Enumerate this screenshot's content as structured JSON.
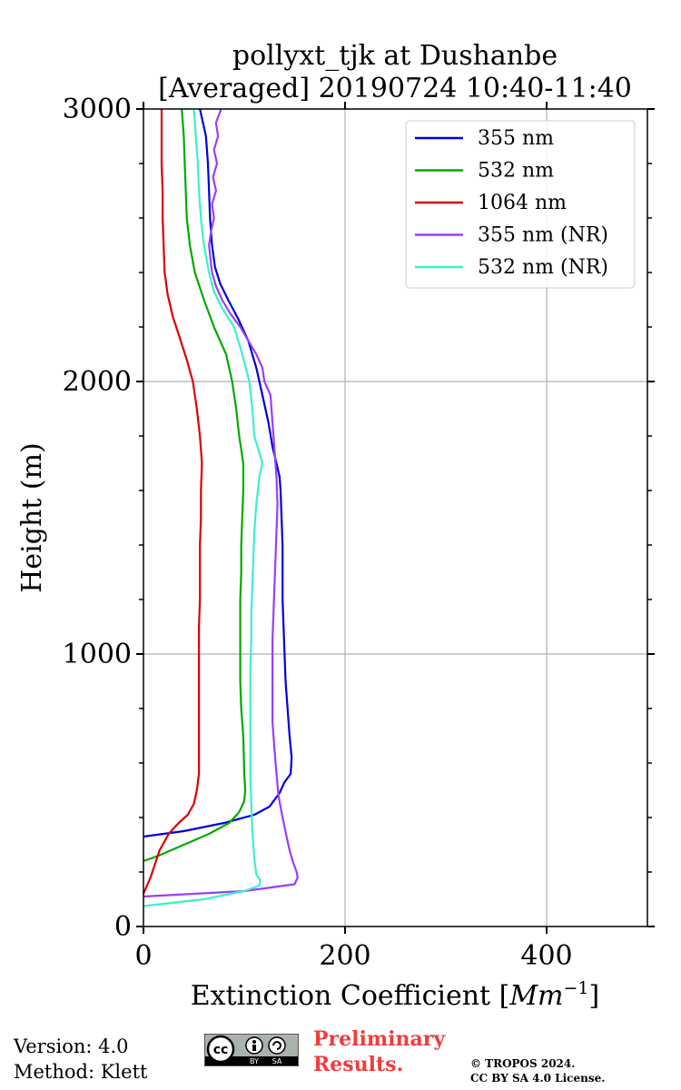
{
  "chart_data": {
    "type": "line",
    "title_line1": "pollyxt_tjk at Dushanbe",
    "title_line2": "[Averaged] 20190724 10:40-11:40",
    "xlabel": "Extinction Coefficient [",
    "xlabel_unit": "Mm",
    "xlabel_exp": "−1",
    "xlabel_close": "]",
    "ylabel": "Height (m)",
    "xlim": [
      0,
      500
    ],
    "ylim": [
      0,
      3000
    ],
    "xticks": [
      0,
      200,
      400
    ],
    "yticks": [
      0,
      1000,
      2000,
      3000
    ],
    "grid": true,
    "legend_position": "top-right",
    "series": [
      {
        "name": "355 nm",
        "color": "#0000dd",
        "points": [
          [
            0,
            330
          ],
          [
            40,
            350
          ],
          [
            80,
            380
          ],
          [
            110,
            410
          ],
          [
            125,
            440
          ],
          [
            135,
            490
          ],
          [
            140,
            530
          ],
          [
            146,
            560
          ],
          [
            147,
            620
          ],
          [
            145,
            700
          ],
          [
            143,
            800
          ],
          [
            141,
            900
          ],
          [
            140,
            1000
          ],
          [
            139,
            1100
          ],
          [
            138,
            1200
          ],
          [
            138,
            1300
          ],
          [
            138,
            1400
          ],
          [
            137,
            1500
          ],
          [
            136,
            1600
          ],
          [
            135,
            1650
          ],
          [
            132,
            1700
          ],
          [
            128,
            1760
          ],
          [
            124,
            1850
          ],
          [
            118,
            1950
          ],
          [
            112,
            2050
          ],
          [
            104,
            2150
          ],
          [
            94,
            2230
          ],
          [
            84,
            2300
          ],
          [
            76,
            2360
          ],
          [
            71,
            2420
          ],
          [
            68,
            2500
          ],
          [
            66,
            2600
          ],
          [
            65,
            2700
          ],
          [
            64,
            2800
          ],
          [
            62,
            2900
          ],
          [
            56,
            3000
          ]
        ]
      },
      {
        "name": "532 nm",
        "color": "#00aa00",
        "points": [
          [
            0,
            240
          ],
          [
            15,
            260
          ],
          [
            40,
            300
          ],
          [
            65,
            340
          ],
          [
            85,
            380
          ],
          [
            95,
            420
          ],
          [
            100,
            460
          ],
          [
            101,
            500
          ],
          [
            100,
            560
          ],
          [
            99,
            700
          ],
          [
            97,
            800
          ],
          [
            96,
            900
          ],
          [
            96,
            1000
          ],
          [
            96,
            1100
          ],
          [
            96,
            1200
          ],
          [
            97,
            1300
          ],
          [
            97,
            1400
          ],
          [
            98,
            1500
          ],
          [
            99,
            1600
          ],
          [
            99,
            1700
          ],
          [
            97,
            1750
          ],
          [
            95,
            1800
          ],
          [
            92,
            1900
          ],
          [
            88,
            2000
          ],
          [
            82,
            2100
          ],
          [
            70,
            2200
          ],
          [
            60,
            2300
          ],
          [
            51,
            2400
          ],
          [
            46,
            2500
          ],
          [
            43,
            2600
          ],
          [
            42,
            2700
          ],
          [
            41,
            2800
          ],
          [
            40,
            2900
          ],
          [
            38,
            3000
          ]
        ]
      },
      {
        "name": "1064 nm",
        "color": "#dd0000",
        "points": [
          [
            0,
            120
          ],
          [
            7,
            180
          ],
          [
            16,
            280
          ],
          [
            25,
            340
          ],
          [
            35,
            380
          ],
          [
            44,
            410
          ],
          [
            50,
            450
          ],
          [
            53,
            500
          ],
          [
            55,
            560
          ],
          [
            55,
            700
          ],
          [
            55,
            800
          ],
          [
            55,
            900
          ],
          [
            55,
            1000
          ],
          [
            55,
            1100
          ],
          [
            56,
            1200
          ],
          [
            56,
            1300
          ],
          [
            56,
            1400
          ],
          [
            57,
            1500
          ],
          [
            57,
            1600
          ],
          [
            58,
            1700
          ],
          [
            56,
            1800
          ],
          [
            53,
            1900
          ],
          [
            49,
            2000
          ],
          [
            43,
            2080
          ],
          [
            36,
            2160
          ],
          [
            29,
            2240
          ],
          [
            24,
            2320
          ],
          [
            21,
            2400
          ],
          [
            20,
            2500
          ],
          [
            19,
            2600
          ],
          [
            19,
            2700
          ],
          [
            18,
            2800
          ],
          [
            18,
            2900
          ],
          [
            18,
            3000
          ]
        ]
      },
      {
        "name": "355 nm (NR)",
        "color": "#9a3ef8",
        "points": [
          [
            0,
            110
          ],
          [
            100,
            130
          ],
          [
            150,
            155
          ],
          [
            153,
            180
          ],
          [
            152,
            200
          ],
          [
            148,
            240
          ],
          [
            145,
            280
          ],
          [
            142,
            330
          ],
          [
            138,
            400
          ],
          [
            134,
            480
          ],
          [
            132,
            560
          ],
          [
            130,
            650
          ],
          [
            128,
            750
          ],
          [
            128,
            850
          ],
          [
            128,
            950
          ],
          [
            128,
            1050
          ],
          [
            129,
            1150
          ],
          [
            130,
            1250
          ],
          [
            131,
            1350
          ],
          [
            132,
            1450
          ],
          [
            133,
            1550
          ],
          [
            132,
            1650
          ],
          [
            130,
            1750
          ],
          [
            128,
            1850
          ],
          [
            126,
            1950
          ],
          [
            120,
            2000
          ],
          [
            118,
            2050
          ],
          [
            112,
            2100
          ],
          [
            104,
            2150
          ],
          [
            96,
            2200
          ],
          [
            86,
            2250
          ],
          [
            78,
            2300
          ],
          [
            72,
            2350
          ],
          [
            68,
            2400
          ],
          [
            65,
            2500
          ],
          [
            67,
            2550
          ],
          [
            70,
            2600
          ],
          [
            68,
            2650
          ],
          [
            72,
            2700
          ],
          [
            69,
            2750
          ],
          [
            73,
            2800
          ],
          [
            70,
            2850
          ],
          [
            74,
            2900
          ],
          [
            72,
            2950
          ],
          [
            77,
            3000
          ]
        ]
      },
      {
        "name": "532 nm (NR)",
        "color": "#3cf0cc",
        "points": [
          [
            0,
            75
          ],
          [
            60,
            100
          ],
          [
            100,
            130
          ],
          [
            115,
            150
          ],
          [
            116,
            170
          ],
          [
            112,
            190
          ],
          [
            110,
            250
          ],
          [
            108,
            350
          ],
          [
            107,
            450
          ],
          [
            106,
            550
          ],
          [
            106,
            650
          ],
          [
            106,
            750
          ],
          [
            106,
            850
          ],
          [
            106,
            950
          ],
          [
            107,
            1050
          ],
          [
            107,
            1150
          ],
          [
            108,
            1250
          ],
          [
            109,
            1350
          ],
          [
            110,
            1450
          ],
          [
            112,
            1550
          ],
          [
            115,
            1650
          ],
          [
            118,
            1700
          ],
          [
            114,
            1750
          ],
          [
            110,
            1800
          ],
          [
            108,
            1900
          ],
          [
            105,
            2000
          ],
          [
            98,
            2100
          ],
          [
            90,
            2200
          ],
          [
            78,
            2270
          ],
          [
            70,
            2330
          ],
          [
            65,
            2400
          ],
          [
            60,
            2500
          ],
          [
            57,
            2600
          ],
          [
            55,
            2700
          ],
          [
            54,
            2800
          ],
          [
            52,
            2900
          ],
          [
            50,
            3000
          ]
        ]
      }
    ]
  },
  "footer": {
    "version": "Version: 4.0",
    "method": "Method: Klett",
    "preliminary_line1": "Preliminary",
    "preliminary_line2": "Results.",
    "copyright_line1": "© TROPOS 2024.",
    "copyright_line2": "CC BY SA 4.0 License.",
    "cc_label": "cc",
    "by_label": "BY",
    "sa_label": "SA"
  }
}
